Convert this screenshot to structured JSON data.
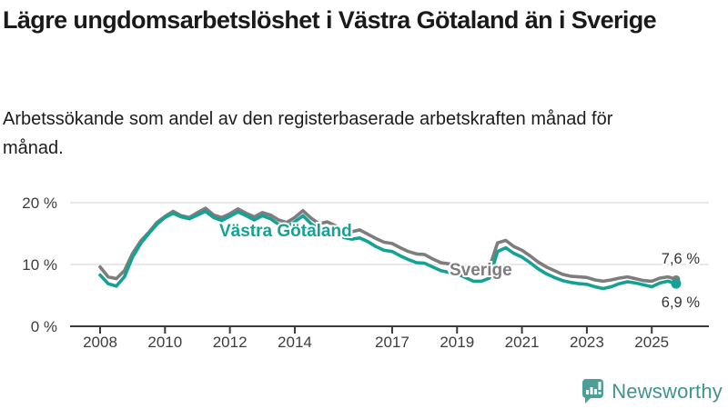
{
  "title": "Lägre ungdomsarbetslöshet i Västra Götaland än i Sverige",
  "subtitle": "Arbetssökande som andel av den registerbaserade arbetskraften månad för månad.",
  "logo": {
    "text": "Newsworthy",
    "icon": "bar-chart-speech-bubble-icon",
    "color": "#4C9E98"
  },
  "chart_data": {
    "type": "line",
    "x_unit": "decimal_year",
    "x": [
      2008.0,
      2008.25,
      2008.5,
      2008.75,
      2009.0,
      2009.25,
      2009.5,
      2009.75,
      2010.0,
      2010.25,
      2010.5,
      2010.75,
      2011.0,
      2011.25,
      2011.5,
      2011.75,
      2012.0,
      2012.25,
      2012.5,
      2012.75,
      2013.0,
      2013.25,
      2013.5,
      2013.75,
      2014.0,
      2014.25,
      2014.5,
      2014.75,
      2015.0,
      2015.25,
      2015.5,
      2015.75,
      2016.0,
      2016.25,
      2016.5,
      2016.75,
      2017.0,
      2017.25,
      2017.5,
      2017.75,
      2018.0,
      2018.25,
      2018.5,
      2018.75,
      2019.0,
      2019.25,
      2019.5,
      2019.75,
      2020.0,
      2020.25,
      2020.5,
      2020.75,
      2021.0,
      2021.25,
      2021.5,
      2021.75,
      2022.0,
      2022.25,
      2022.5,
      2022.75,
      2023.0,
      2023.25,
      2023.5,
      2023.75,
      2024.0,
      2024.25,
      2024.5,
      2024.75,
      2025.0,
      2025.25,
      2025.5,
      2025.75
    ],
    "series": [
      {
        "name": "Sverige",
        "color": "#7d7d7d",
        "end_label": "7,6 %",
        "values": [
          9.6,
          8.0,
          7.7,
          9.0,
          11.8,
          13.8,
          15.2,
          16.8,
          17.8,
          18.6,
          17.9,
          17.6,
          18.4,
          19.1,
          18.0,
          17.6,
          18.2,
          19.0,
          18.3,
          17.7,
          18.4,
          18.0,
          17.2,
          16.8,
          17.6,
          18.7,
          17.5,
          16.6,
          16.9,
          16.3,
          15.5,
          15.3,
          15.6,
          14.9,
          14.2,
          13.6,
          13.4,
          12.7,
          12.1,
          11.7,
          11.6,
          10.9,
          10.3,
          10.1,
          10.0,
          9.5,
          9.2,
          9.2,
          9.6,
          13.5,
          13.9,
          12.9,
          12.3,
          11.4,
          10.4,
          9.6,
          9.0,
          8.4,
          8.1,
          8.0,
          7.9,
          7.5,
          7.3,
          7.5,
          7.8,
          8.0,
          7.7,
          7.4,
          7.3,
          7.8,
          8.0,
          7.6
        ]
      },
      {
        "name": "Västra Götaland",
        "color": "#14a294",
        "end_label": "6,9 %",
        "values": [
          8.3,
          6.9,
          6.5,
          8.0,
          11.2,
          13.4,
          15.0,
          16.5,
          17.6,
          18.3,
          17.7,
          17.4,
          18.0,
          18.6,
          17.6,
          17.1,
          17.8,
          18.5,
          17.9,
          17.2,
          17.9,
          17.4,
          16.5,
          16.1,
          16.9,
          17.9,
          16.6,
          15.7,
          15.9,
          15.3,
          14.4,
          14.1,
          14.3,
          13.7,
          12.9,
          12.3,
          12.1,
          11.4,
          10.8,
          10.3,
          10.2,
          9.6,
          9.0,
          8.7,
          8.5,
          7.9,
          7.3,
          7.3,
          7.8,
          12.1,
          12.7,
          11.8,
          11.2,
          10.3,
          9.3,
          8.5,
          7.9,
          7.4,
          7.1,
          6.9,
          6.8,
          6.4,
          6.1,
          6.4,
          6.9,
          7.2,
          7.0,
          6.7,
          6.4,
          7.0,
          7.3,
          6.9
        ]
      }
    ],
    "x_ticks": [
      {
        "value": 2008,
        "label": "2008"
      },
      {
        "value": 2010,
        "label": "2010"
      },
      {
        "value": 2012,
        "label": "2012"
      },
      {
        "value": 2014,
        "label": "2014"
      },
      {
        "value": 2017,
        "label": "2017"
      },
      {
        "value": 2019,
        "label": "2019"
      },
      {
        "value": 2021,
        "label": "2021"
      },
      {
        "value": 2023,
        "label": "2023"
      },
      {
        "value": 2025,
        "label": "2025"
      }
    ],
    "y_ticks": [
      {
        "value": 0,
        "label": "0 %"
      },
      {
        "value": 10,
        "label": "10 %"
      },
      {
        "value": 20,
        "label": "20 %"
      }
    ],
    "ylim": [
      0,
      21
    ],
    "grid": "horizontal",
    "legend_position": "inline-labels",
    "colors": {
      "grid": "#d9d9d9",
      "axis": "#3a3a3a",
      "tick_text": "#3d3d3d",
      "end_label_text": "#333333"
    }
  }
}
